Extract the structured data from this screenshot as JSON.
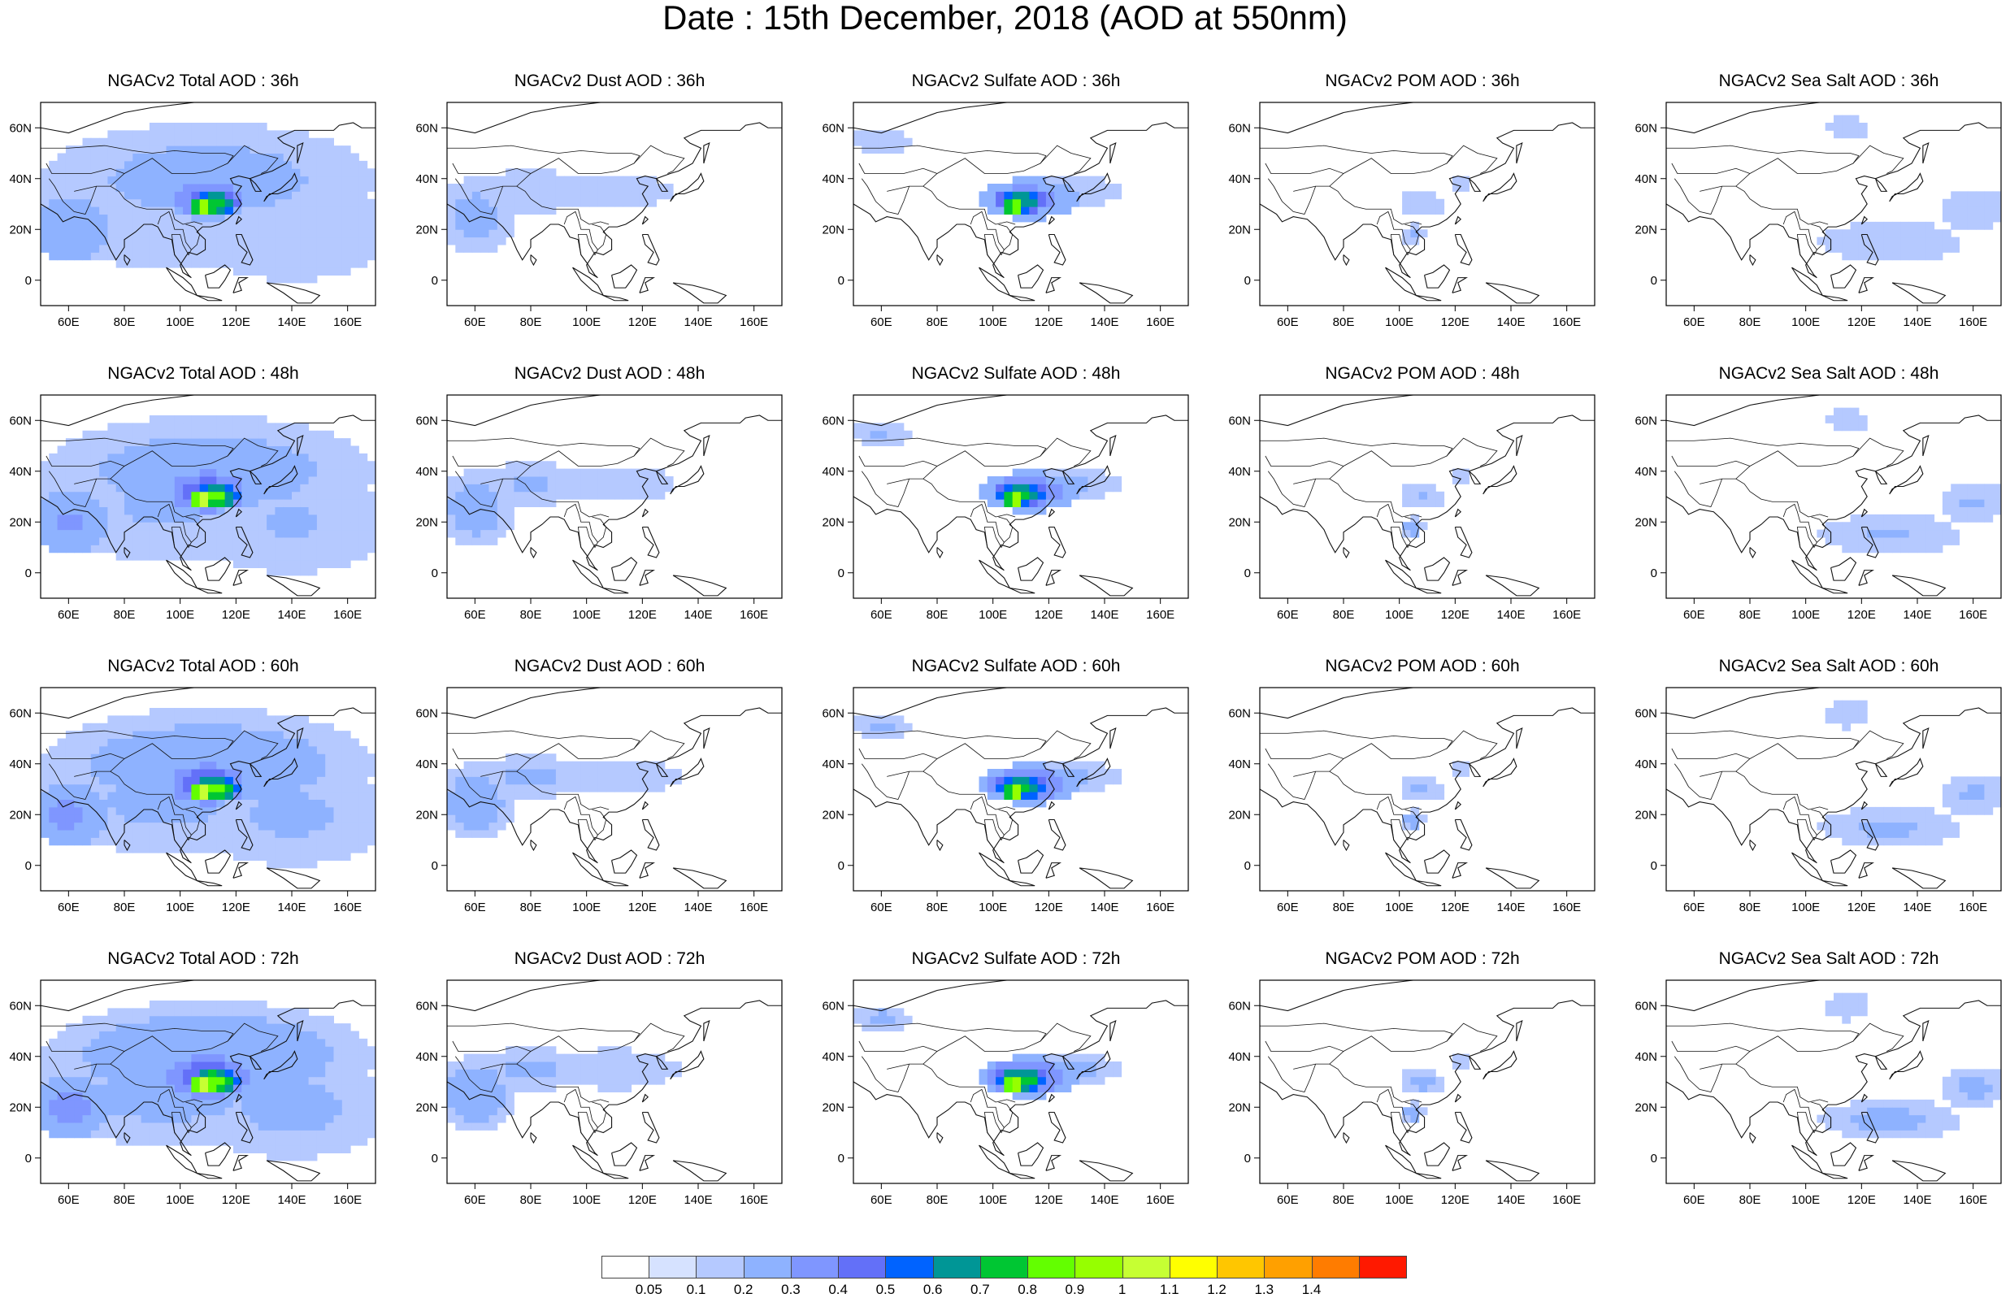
{
  "figure": {
    "title": "Date : 15th December, 2018 (AOD at 550nm)"
  },
  "axes": {
    "lon_ticks": [
      "60E",
      "80E",
      "100E",
      "120E",
      "140E",
      "160E"
    ],
    "lat_ticks": [
      "60N",
      "40N",
      "20N",
      "0"
    ],
    "lon_range": [
      50,
      170
    ],
    "lat_range": [
      -10,
      70
    ]
  },
  "panels": [
    {
      "title": "NGACv2 Total AOD : 36h",
      "species": "total",
      "hour": 36
    },
    {
      "title": "NGACv2 Dust AOD : 36h",
      "species": "dust",
      "hour": 36
    },
    {
      "title": "NGACv2 Sulfate AOD : 36h",
      "species": "sulfate",
      "hour": 36
    },
    {
      "title": "NGACv2 POM AOD : 36h",
      "species": "pom",
      "hour": 36
    },
    {
      "title": "NGACv2 Sea Salt AOD : 36h",
      "species": "seasalt",
      "hour": 36
    },
    {
      "title": "NGACv2 Total AOD : 48h",
      "species": "total",
      "hour": 48
    },
    {
      "title": "NGACv2 Dust AOD : 48h",
      "species": "dust",
      "hour": 48
    },
    {
      "title": "NGACv2 Sulfate AOD : 48h",
      "species": "sulfate",
      "hour": 48
    },
    {
      "title": "NGACv2 POM AOD : 48h",
      "species": "pom",
      "hour": 48
    },
    {
      "title": "NGACv2 Sea Salt AOD : 48h",
      "species": "seasalt",
      "hour": 48
    },
    {
      "title": "NGACv2 Total AOD : 60h",
      "species": "total",
      "hour": 60
    },
    {
      "title": "NGACv2 Dust AOD : 60h",
      "species": "dust",
      "hour": 60
    },
    {
      "title": "NGACv2 Sulfate AOD : 60h",
      "species": "sulfate",
      "hour": 60
    },
    {
      "title": "NGACv2 POM AOD : 60h",
      "species": "pom",
      "hour": 60
    },
    {
      "title": "NGACv2 Sea Salt AOD : 60h",
      "species": "seasalt",
      "hour": 60
    },
    {
      "title": "NGACv2 Total AOD : 72h",
      "species": "total",
      "hour": 72
    },
    {
      "title": "NGACv2 Dust AOD : 72h",
      "species": "dust",
      "hour": 72
    },
    {
      "title": "NGACv2 Sulfate AOD : 72h",
      "species": "sulfate",
      "hour": 72
    },
    {
      "title": "NGACv2 POM AOD : 72h",
      "species": "pom",
      "hour": 72
    },
    {
      "title": "NGACv2 Sea Salt  AOD : 72h",
      "species": "seasalt",
      "hour": 72
    }
  ],
  "colorbar": {
    "labels": [
      "0.05",
      "0.1",
      "0.2",
      "0.3",
      "0.4",
      "0.5",
      "0.6",
      "0.7",
      "0.8",
      "0.9",
      "1",
      "1.1",
      "1.2",
      "1.3",
      "1.4"
    ],
    "colors": [
      "#ffffff",
      "#d6e2ff",
      "#b5c9ff",
      "#8eb2ff",
      "#7f96ff",
      "#6370f8",
      "#0063ff",
      "#009696",
      "#00c633",
      "#63ff00",
      "#96ff00",
      "#c6ff33",
      "#ffff00",
      "#ffc600",
      "#ffa000",
      "#ff7c00",
      "#ff1900"
    ]
  }
}
